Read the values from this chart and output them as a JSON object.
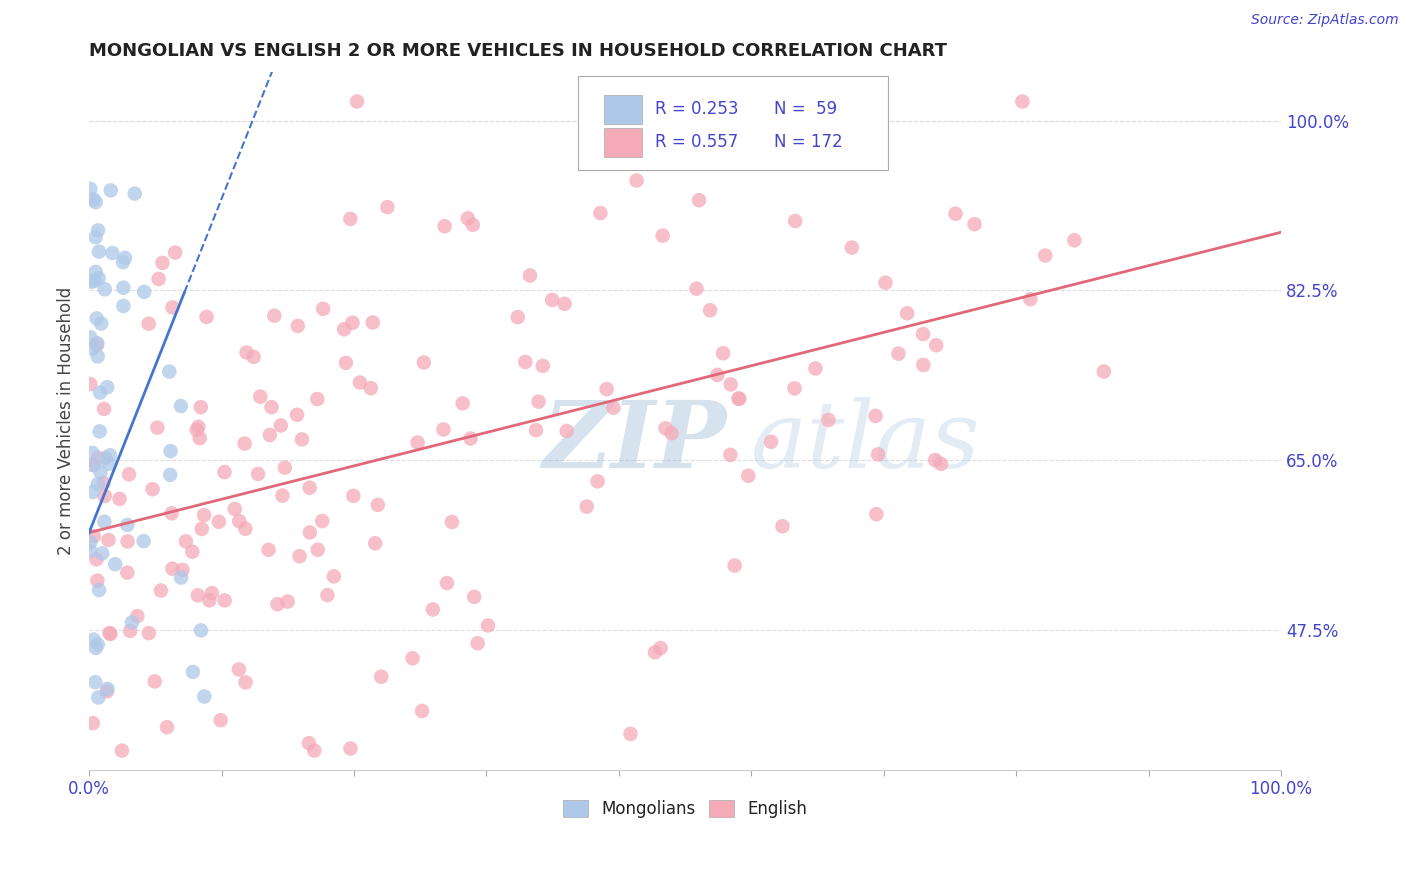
{
  "title": "MONGOLIAN VS ENGLISH 2 OR MORE VEHICLES IN HOUSEHOLD CORRELATION CHART",
  "source": "Source: ZipAtlas.com",
  "ylabel": "2 or more Vehicles in Household",
  "xlim": [
    0.0,
    1.0
  ],
  "ylim": [
    0.33,
    1.05
  ],
  "xtick_labels": [
    "0.0%",
    "",
    "",
    "",
    "",
    "",
    "",
    "",
    "",
    "100.0%"
  ],
  "ytick_right": [
    0.475,
    0.65,
    0.825,
    1.0
  ],
  "ytick_right_labels": [
    "47.5%",
    "65.0%",
    "82.5%",
    "100.0%"
  ],
  "mongolian_color": "#adc8e8",
  "english_color": "#f5aab8",
  "mongolian_line_color": "#4477cc",
  "english_line_color": "#e06878",
  "legend_R_mongolian": "R = 0.253",
  "legend_N_mongolian": "N =  59",
  "legend_R_english": "R = 0.557",
  "legend_N_english": "N = 172",
  "background_color": "#ffffff",
  "grid_color": "#dddddd",
  "text_color": "#4444cc",
  "title_color": "#222222"
}
